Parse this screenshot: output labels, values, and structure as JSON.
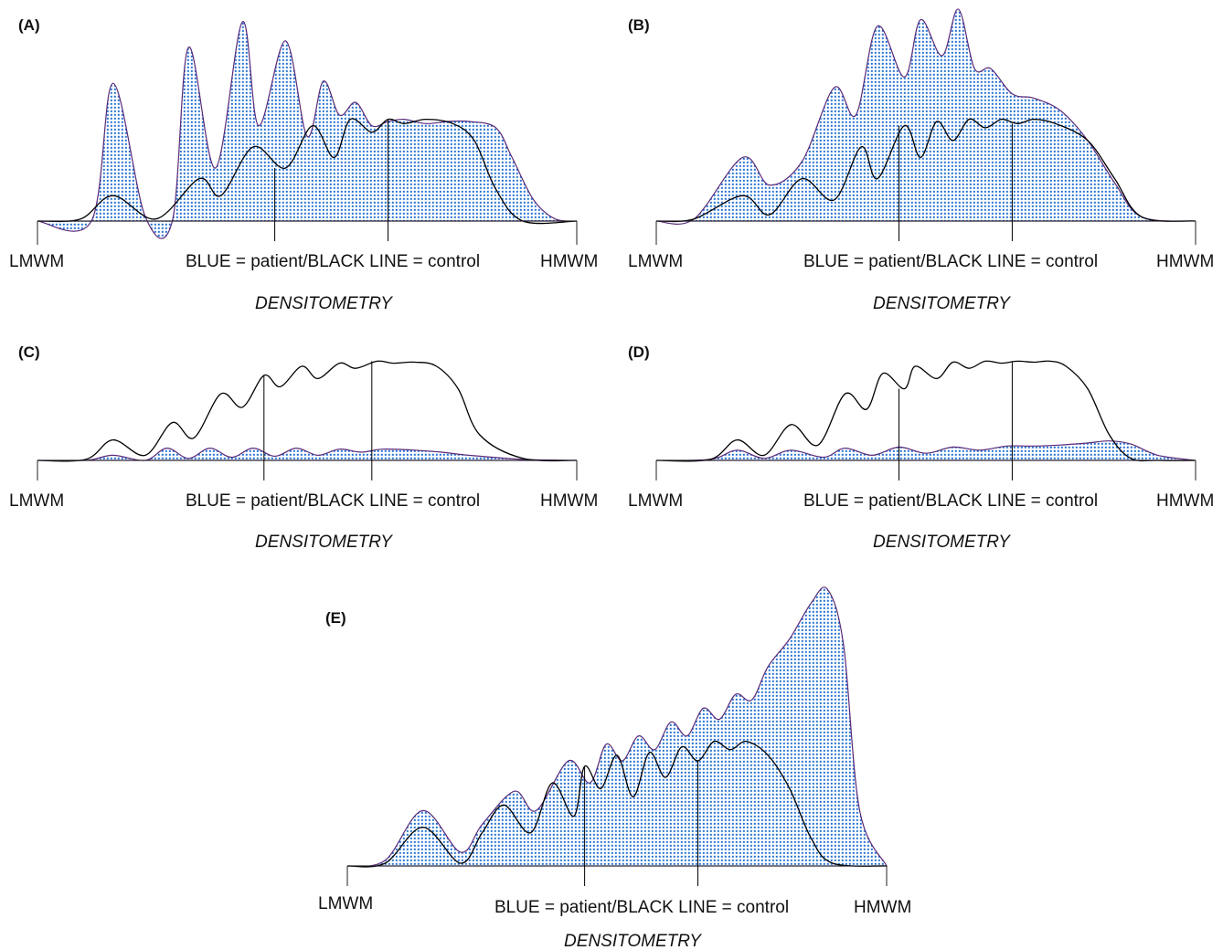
{
  "figure": {
    "colors": {
      "patient_dot": "#1f6fd1",
      "patient_outline": "#5a2a7a",
      "control_line": "#000000",
      "axis": "#222222"
    }
  },
  "chart_data": [
    {
      "type": "area",
      "panel_label": "(A)",
      "xlabel_left": "LMWM",
      "xlabel_center": "BLUE = patient/BLACK LINE = control",
      "xlabel_right": "HMWM",
      "caption": "DENSITOMETRY",
      "xlim": [
        0,
        100
      ],
      "ylim": [
        0,
        100
      ],
      "markers_x": [
        44,
        65
      ],
      "series": [
        {
          "name": "patient",
          "x": [
            0,
            10,
            14,
            20,
            25,
            28,
            33,
            38,
            41,
            46,
            50,
            53,
            56,
            59,
            62,
            65,
            68,
            72,
            76,
            80,
            85,
            88,
            92,
            96,
            100
          ],
          "y": [
            0,
            0,
            65,
            2,
            0,
            82,
            25,
            94,
            45,
            85,
            40,
            66,
            50,
            56,
            45,
            47,
            48,
            46,
            47,
            47,
            44,
            30,
            10,
            1,
            0
          ]
        },
        {
          "name": "control",
          "x": [
            0,
            8,
            14,
            22,
            30,
            34,
            40,
            46,
            51,
            55,
            58,
            62,
            65,
            68,
            72,
            77,
            81,
            85,
            90,
            100
          ],
          "y": [
            0,
            1,
            12,
            1,
            20,
            12,
            35,
            25,
            45,
            30,
            48,
            42,
            48,
            46,
            48,
            46,
            38,
            15,
            0,
            0
          ]
        }
      ]
    },
    {
      "type": "area",
      "panel_label": "(B)",
      "xlabel_left": "LMWM",
      "xlabel_center": "BLUE = patient/BLACK LINE = control",
      "xlabel_right": "HMWM",
      "caption": "DENSITOMETRY",
      "xlim": [
        0,
        100
      ],
      "ylim": [
        0,
        100
      ],
      "markers_x": [
        45,
        66
      ],
      "series": [
        {
          "name": "patient",
          "x": [
            0,
            7,
            16,
            21,
            27,
            33,
            37,
            41,
            46,
            49,
            53,
            56,
            59,
            62,
            66,
            70,
            75,
            80,
            85,
            90,
            100
          ],
          "y": [
            0,
            1,
            30,
            17,
            28,
            63,
            50,
            92,
            68,
            95,
            78,
            100,
            72,
            72,
            60,
            58,
            52,
            38,
            18,
            2,
            0
          ]
        },
        {
          "name": "control",
          "x": [
            0,
            7,
            16,
            21,
            27,
            33,
            38,
            41,
            46,
            49,
            52,
            55,
            58,
            61,
            64,
            67,
            70,
            74,
            80,
            85,
            90,
            100
          ],
          "y": [
            0,
            1,
            12,
            3,
            20,
            10,
            35,
            20,
            45,
            30,
            47,
            38,
            48,
            44,
            48,
            46,
            48,
            46,
            38,
            20,
            2,
            0
          ]
        }
      ]
    },
    {
      "type": "area",
      "panel_label": "(C)",
      "xlabel_left": "LMWM",
      "xlabel_center": "BLUE = patient/BLACK LINE = control",
      "xlabel_right": "HMWM",
      "caption": "DENSITOMETRY",
      "xlim": [
        0,
        100
      ],
      "ylim": [
        0,
        100
      ],
      "markers_x": [
        42,
        62
      ],
      "series": [
        {
          "name": "patient",
          "x": [
            0,
            9,
            14,
            20,
            24,
            28,
            32,
            36,
            40,
            44,
            48,
            52,
            56,
            60,
            64,
            70,
            75,
            80,
            90,
            100
          ],
          "y": [
            0,
            0,
            5,
            0,
            12,
            2,
            12,
            3,
            12,
            4,
            12,
            5,
            11,
            8,
            11,
            10,
            8,
            5,
            1,
            0
          ]
        },
        {
          "name": "control",
          "x": [
            0,
            9,
            14,
            20,
            25,
            29,
            34,
            38,
            42,
            45,
            49,
            52,
            56,
            59,
            63,
            66,
            70,
            74,
            78,
            82,
            90,
            100
          ],
          "y": [
            0,
            1,
            20,
            5,
            37,
            22,
            65,
            52,
            83,
            72,
            92,
            80,
            95,
            90,
            97,
            95,
            96,
            92,
            70,
            25,
            2,
            0
          ]
        }
      ]
    },
    {
      "type": "area",
      "panel_label": "(D)",
      "xlabel_left": "LMWM",
      "xlabel_center": "BLUE = patient/BLACK LINE = control",
      "xlabel_right": "HMWM",
      "caption": "DENSITOMETRY",
      "xlim": [
        0,
        100
      ],
      "ylim": [
        0,
        100
      ],
      "markers_x": [
        45,
        66
      ],
      "series": [
        {
          "name": "patient",
          "x": [
            0,
            10,
            15,
            20,
            25,
            31,
            35,
            40,
            45,
            50,
            55,
            60,
            65,
            70,
            75,
            80,
            84,
            88,
            93,
            100
          ],
          "y": [
            0,
            1,
            10,
            2,
            10,
            3,
            12,
            5,
            13,
            7,
            13,
            10,
            14,
            14,
            15,
            17,
            19,
            16,
            5,
            0
          ]
        },
        {
          "name": "control",
          "x": [
            0,
            10,
            15,
            20,
            25,
            30,
            35,
            39,
            42,
            46,
            48,
            52,
            55,
            58,
            61,
            64,
            67,
            70,
            73,
            76,
            80,
            84,
            88,
            93,
            100
          ],
          "y": [
            0,
            1,
            20,
            5,
            35,
            15,
            65,
            50,
            85,
            70,
            92,
            80,
            96,
            90,
            97,
            95,
            97,
            96,
            97,
            92,
            70,
            25,
            2,
            0,
            0
          ]
        }
      ]
    },
    {
      "type": "area",
      "panel_label": "(E)",
      "xlabel_left": "LMWM",
      "xlabel_center": "BLUE = patient/BLACK LINE = control",
      "xlabel_right": "HMWM",
      "caption": "DENSITOMETRY",
      "xlim": [
        0,
        100
      ],
      "ylim": [
        0,
        100
      ],
      "markers_x": [
        44,
        65
      ],
      "series": [
        {
          "name": "patient",
          "x": [
            0,
            7,
            14,
            21,
            25,
            31,
            35,
            41,
            45,
            48,
            51,
            54,
            57,
            60,
            63,
            66,
            69,
            72,
            75,
            78,
            82,
            86,
            89,
            92,
            95,
            100
          ],
          "y": [
            0,
            2,
            20,
            5,
            15,
            27,
            20,
            38,
            30,
            44,
            38,
            47,
            42,
            52,
            47,
            57,
            53,
            62,
            60,
            72,
            82,
            95,
            100,
            80,
            20,
            0
          ]
        },
        {
          "name": "control",
          "x": [
            0,
            7,
            14,
            21,
            25,
            29,
            34,
            38,
            42,
            44,
            47,
            50,
            53,
            56,
            59,
            62,
            65,
            68,
            71,
            74,
            78,
            82,
            86,
            90,
            100
          ],
          "y": [
            0,
            1,
            14,
            1,
            12,
            22,
            12,
            30,
            18,
            36,
            28,
            40,
            25,
            41,
            32,
            43,
            38,
            45,
            42,
            45,
            40,
            28,
            10,
            1,
            0
          ]
        }
      ]
    }
  ]
}
